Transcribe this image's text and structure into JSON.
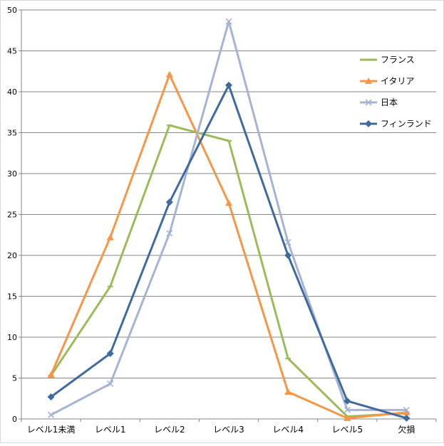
{
  "chart_data": {
    "type": "line",
    "title": "",
    "xlabel": "",
    "ylabel": "",
    "categories": [
      "レベル1未満",
      "レベル1",
      "レベル2",
      "レベル3",
      "レベル4",
      "レベル5",
      "欠損"
    ],
    "ylim": [
      0,
      50
    ],
    "yticks": [
      0,
      5,
      10,
      15,
      20,
      25,
      30,
      35,
      40,
      45,
      50
    ],
    "grid": true,
    "legend_position": "right",
    "series": [
      {
        "name": "フランス",
        "color": "#9bbb59",
        "marker": "dash",
        "values": [
          5.3,
          16.2,
          35.9,
          34.0,
          7.4,
          0.3,
          0.7
        ]
      },
      {
        "name": "イタリア",
        "color": "#f79646",
        "marker": "triangle",
        "values": [
          5.4,
          22.2,
          42.1,
          26.4,
          3.3,
          0.1,
          0.8
        ]
      },
      {
        "name": "日本",
        "color": "#a5b4d3",
        "marker": "x",
        "values": [
          0.5,
          4.3,
          22.7,
          48.6,
          21.6,
          1.1,
          1.1
        ]
      },
      {
        "name": "フィンランド",
        "color": "#3e6aa0",
        "marker": "diamond",
        "values": [
          2.7,
          8.0,
          26.5,
          40.8,
          20.0,
          2.2,
          0.1
        ]
      }
    ]
  }
}
